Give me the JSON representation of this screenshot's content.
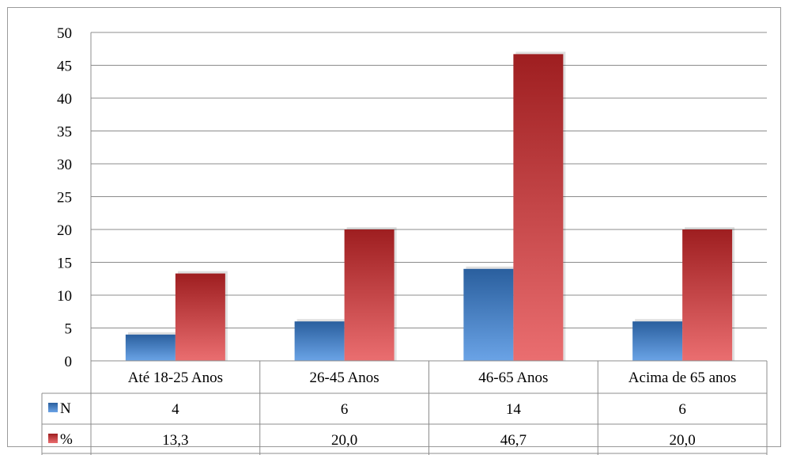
{
  "chart_data": {
    "type": "bar",
    "categories": [
      "Até 18-25 Anos",
      "26-45 Anos",
      "46-65 Anos",
      "Acima de 65 anos"
    ],
    "series": [
      {
        "name": "N",
        "values": [
          4,
          6,
          14,
          6
        ],
        "labels": [
          "4",
          "6",
          "14",
          "6"
        ],
        "color": "#3f76b8"
      },
      {
        "name": "%",
        "values": [
          13.3,
          20.0,
          46.7,
          20.0
        ],
        "labels": [
          "13,3",
          "20,0",
          "46,7",
          "20,0"
        ],
        "color": "#c0393b"
      }
    ],
    "ylim": [
      0,
      50
    ],
    "yticks": [
      0,
      5,
      10,
      15,
      20,
      25,
      30,
      35,
      40,
      45,
      50
    ],
    "grid": true,
    "legend": "data-table",
    "title": "",
    "xlabel": "",
    "ylabel": ""
  }
}
